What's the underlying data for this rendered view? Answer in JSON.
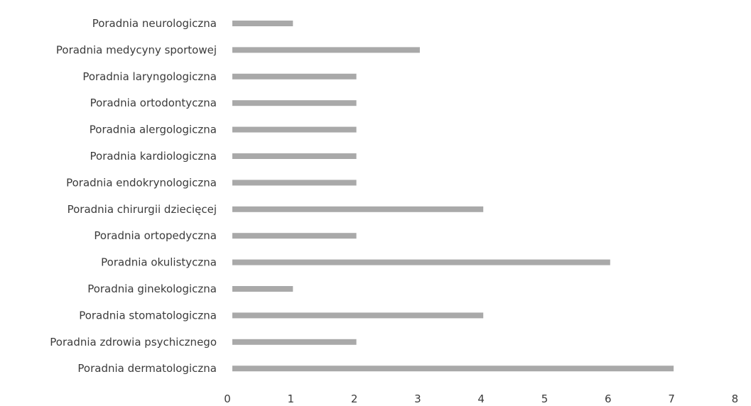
{
  "chart_data": {
    "type": "bar",
    "orientation": "horizontal",
    "categories": [
      "Poradnia neurologiczna",
      "Poradnia medycyny sportowej",
      "Poradnia laryngologiczna",
      "Poradnia ortodontyczna",
      "Poradnia alergologiczna",
      "Poradnia kardiologiczna",
      "Poradnia endokrynologiczna",
      "Poradnia chirurgii dziecięcej",
      "Poradnia ortopedyczna",
      "Poradnia okulistyczna",
      "Poradnia ginekologiczna",
      "Poradnia stomatologiczna",
      "Poradnia zdrowia psychicznego",
      "Poradnia dermatologiczna"
    ],
    "values": [
      1,
      3,
      2,
      2,
      2,
      2,
      2,
      4,
      2,
      6,
      1,
      4,
      2,
      7
    ],
    "title": "",
    "xlabel": "",
    "ylabel": "",
    "xlim": [
      0,
      8
    ],
    "xticks": [
      "0",
      "1",
      "2",
      "3",
      "4",
      "5",
      "6",
      "7",
      "8"
    ],
    "grid": false,
    "legend": "none",
    "bar_color": "#a9a9a9"
  }
}
